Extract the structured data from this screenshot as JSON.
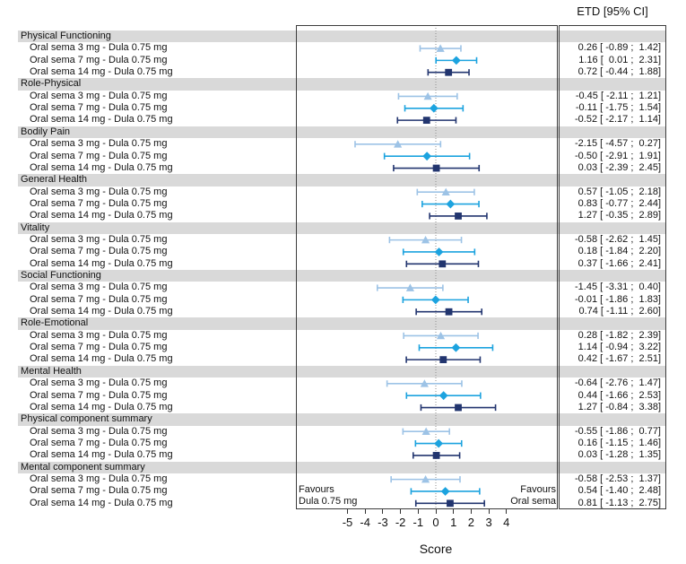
{
  "figure": {
    "etd_header": "ETD [95% CI]",
    "xlabel": "Score",
    "favours_left_line1": "Favours",
    "favours_left_line2": "Dula 0.75 mg",
    "favours_right_line1": "Favours",
    "favours_right_line2": "Oral sema"
  },
  "colors": {
    "band": "#d9d9d9",
    "frame": "#3c3c3c",
    "zero_line": "#8f8f8f",
    "dose_3mg": "#9DC3E6",
    "dose_7mg": "#1CA3DF",
    "dose_14mg": "#22356F"
  },
  "chart_data": {
    "type": "forest",
    "title": "",
    "xlabel": "Score",
    "value_column_header": "ETD [95% CI]",
    "x_ticks": [
      -5,
      -4,
      -3,
      -2,
      -1,
      0,
      1,
      2,
      3,
      4
    ],
    "xlim": [
      -7.9,
      6.9
    ],
    "reference_line": 0,
    "grid": false,
    "favours_left": "Favours Dula 0.75 mg",
    "favours_right": "Favours Oral sema",
    "comparisons": [
      {
        "label": "Oral sema 3 mg - Dula 0.75 mg",
        "marker": "triangle",
        "color_key": "dose_3mg"
      },
      {
        "label": "Oral sema 7 mg - Dula 0.75 mg",
        "marker": "diamond",
        "color_key": "dose_7mg"
      },
      {
        "label": "Oral sema 14 mg - Dula 0.75 mg",
        "marker": "square",
        "color_key": "dose_14mg"
      }
    ],
    "groups": [
      {
        "name": "Physical Functioning",
        "estimates": [
          [
            0.26,
            -0.89,
            1.42
          ],
          [
            1.16,
            0.01,
            2.31
          ],
          [
            0.72,
            -0.44,
            1.88
          ]
        ]
      },
      {
        "name": "Role-Physical",
        "estimates": [
          [
            -0.45,
            -2.11,
            1.21
          ],
          [
            -0.11,
            -1.75,
            1.54
          ],
          [
            -0.52,
            -2.17,
            1.14
          ]
        ]
      },
      {
        "name": "Bodily Pain",
        "estimates": [
          [
            -2.15,
            -4.57,
            0.27
          ],
          [
            -0.5,
            -2.91,
            1.91
          ],
          [
            0.03,
            -2.39,
            2.45
          ]
        ]
      },
      {
        "name": "General Health",
        "estimates": [
          [
            0.57,
            -1.05,
            2.18
          ],
          [
            0.83,
            -0.77,
            2.44
          ],
          [
            1.27,
            -0.35,
            2.89
          ]
        ]
      },
      {
        "name": "Vitality",
        "estimates": [
          [
            -0.58,
            -2.62,
            1.45
          ],
          [
            0.18,
            -1.84,
            2.2
          ],
          [
            0.37,
            -1.66,
            2.41
          ]
        ]
      },
      {
        "name": "Social Functioning",
        "estimates": [
          [
            -1.45,
            -3.31,
            0.4
          ],
          [
            -0.01,
            -1.86,
            1.83
          ],
          [
            0.74,
            -1.11,
            2.6
          ]
        ]
      },
      {
        "name": "Role-Emotional",
        "estimates": [
          [
            0.28,
            -1.82,
            2.39
          ],
          [
            1.14,
            -0.94,
            3.22
          ],
          [
            0.42,
            -1.67,
            2.51
          ]
        ]
      },
      {
        "name": "Mental Health",
        "estimates": [
          [
            -0.64,
            -2.76,
            1.47
          ],
          [
            0.44,
            -1.66,
            2.53
          ],
          [
            1.27,
            -0.84,
            3.38
          ]
        ]
      },
      {
        "name": "Physical component summary",
        "estimates": [
          [
            -0.55,
            -1.86,
            0.77
          ],
          [
            0.16,
            -1.15,
            1.46
          ],
          [
            0.03,
            -1.28,
            1.35
          ]
        ]
      },
      {
        "name": "Mental component summary",
        "estimates": [
          [
            -0.58,
            -2.53,
            1.37
          ],
          [
            0.54,
            -1.4,
            2.48
          ],
          [
            0.81,
            -1.13,
            2.75
          ]
        ]
      }
    ]
  }
}
